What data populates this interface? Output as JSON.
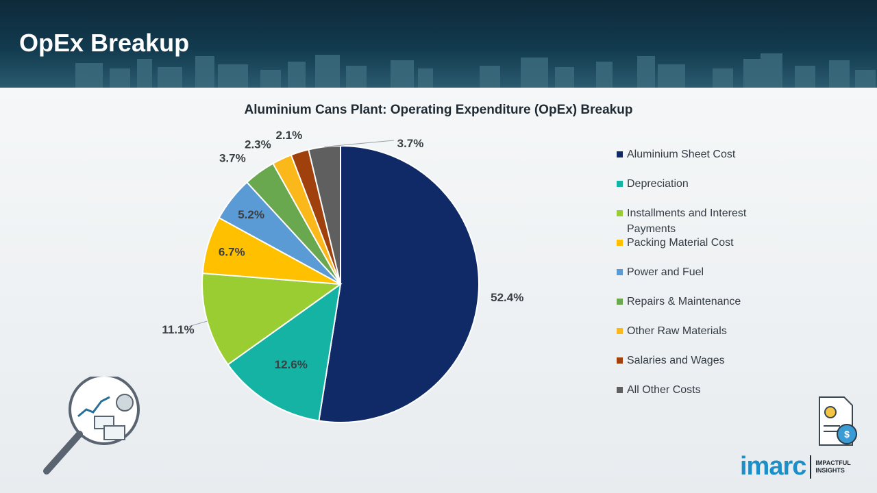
{
  "page": {
    "title": "OpEx Breakup"
  },
  "chart_data": {
    "type": "pie",
    "title": "Aluminium Cans Plant: Operating Expenditure (OpEx) Breakup",
    "legend_position": "right",
    "slices": [
      {
        "label": "Aluminium Sheet Cost",
        "value": 52.4,
        "display": "52.4%",
        "color": "#0f2a66"
      },
      {
        "label": "Depreciation",
        "value": 12.6,
        "display": "12.6%",
        "color": "#14b3a4"
      },
      {
        "label": "Installments and Interest Payments",
        "value": 11.1,
        "display": "11.1%",
        "color": "#9acd32"
      },
      {
        "label": "Packing Material Cost",
        "value": 6.7,
        "display": "6.7%",
        "color": "#ffc000"
      },
      {
        "label": "Power and Fuel",
        "value": 5.2,
        "display": "5.2%",
        "color": "#5b9bd5"
      },
      {
        "label": "Repairs & Maintenance",
        "value": 3.7,
        "display": "3.7%",
        "color": "#6aa84f"
      },
      {
        "label": "Other Raw Materials",
        "value": 2.3,
        "display": "2.3%",
        "color": "#fbb81a"
      },
      {
        "label": "Salaries and Wages",
        "value": 2.1,
        "display": "2.1%",
        "color": "#a0410d"
      },
      {
        "label": "All Other Costs",
        "value": 3.7,
        "display": "3.7%",
        "color": "#5f5f5f"
      }
    ]
  },
  "branding": {
    "logo_text": "imarc",
    "tagline_line1": "IMPACTFUL",
    "tagline_line2": "INSIGHTS"
  }
}
